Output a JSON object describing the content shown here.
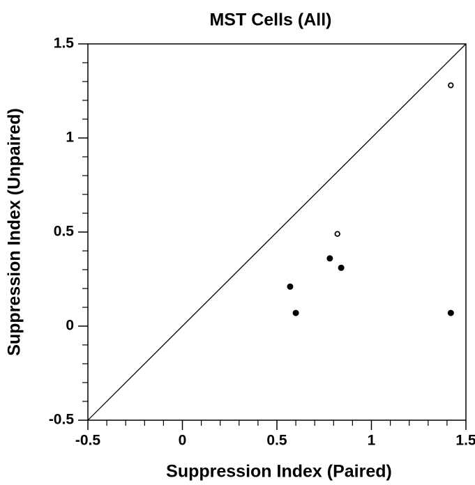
{
  "chart_data": {
    "type": "scatter",
    "title": "MST Cells (All)",
    "x_label": "Suppression Index  (Paired)",
    "y_label": "Suppression Index  (Unpaired)",
    "series": [
      {
        "marker": "open",
        "color": "#000000",
        "x": [
          1.42,
          0.82
        ],
        "y": [
          1.28,
          0.49
        ]
      },
      {
        "marker": "filled",
        "color": "#000000",
        "x": [
          0.78,
          0.84,
          0.57,
          0.6,
          1.42
        ],
        "y": [
          0.36,
          0.31,
          0.21,
          0.07,
          0.07
        ]
      }
    ],
    "xlim": [
      -0.5,
      1.5
    ],
    "ylim": [
      -0.5,
      1.5
    ],
    "xticks": [
      -0.5,
      0,
      0.5,
      1,
      1.5
    ],
    "yticks": [
      -0.5,
      0,
      0.5,
      1,
      1.5
    ],
    "minor_divisions": 5,
    "identity_line": true,
    "grid": false
  }
}
